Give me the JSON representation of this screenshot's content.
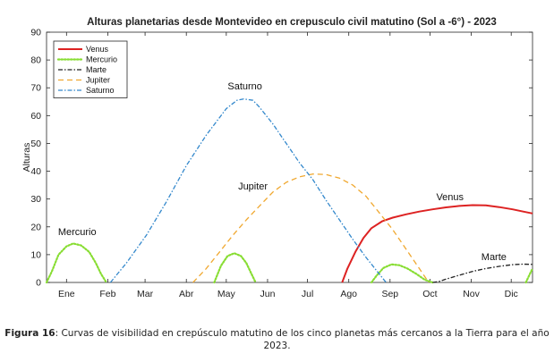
{
  "chart_data": {
    "type": "line",
    "title": "Alturas planetarias desde Montevideo en crepusculo civil matutino (Sol a -6°) - 2023",
    "xlabel": "",
    "ylabel": "Alturas",
    "xlim": [
      0,
      365
    ],
    "ylim": [
      0,
      90
    ],
    "yticks": [
      0,
      10,
      20,
      30,
      40,
      50,
      60,
      70,
      80,
      90
    ],
    "xtick_positions": [
      15,
      46,
      74,
      105,
      135,
      166,
      196,
      227,
      258,
      288,
      319,
      349
    ],
    "xtick_labels": [
      "Ene",
      "Feb",
      "Mar",
      "Abr",
      "May",
      "Jun",
      "Jul",
      "Ago",
      "Sep",
      "Oct",
      "Nov",
      "Dic"
    ],
    "grid": false,
    "legend_position": "top-left",
    "series": [
      {
        "name": "Venus",
        "color": "#dd2222",
        "dash": "solid",
        "segments": [
          [
            [
              222,
              0
            ],
            [
              226,
              5
            ],
            [
              232,
              11
            ],
            [
              238,
              16
            ],
            [
              244,
              19.5
            ],
            [
              252,
              22
            ],
            [
              260,
              23.3
            ],
            [
              270,
              24.5
            ],
            [
              280,
              25.5
            ],
            [
              290,
              26.3
            ],
            [
              300,
              27
            ],
            [
              310,
              27.5
            ],
            [
              320,
              27.8
            ],
            [
              330,
              27.7
            ],
            [
              340,
              27.1
            ],
            [
              350,
              26.3
            ],
            [
              358,
              25.5
            ],
            [
              365,
              24.8
            ]
          ]
        ]
      },
      {
        "name": "Mercurio",
        "color": "#88dd33",
        "dash": "dot",
        "segments": [
          [
            [
              0,
              0
            ],
            [
              4,
              4
            ],
            [
              9,
              10
            ],
            [
              15,
              13
            ],
            [
              20,
              14
            ],
            [
              26,
              13.3
            ],
            [
              32,
              11
            ],
            [
              37,
              7
            ],
            [
              41,
              3
            ],
            [
              45,
              0
            ]
          ],
          [
            [
              126,
              0
            ],
            [
              131,
              6
            ],
            [
              136,
              9.5
            ],
            [
              141,
              10.5
            ],
            [
              146,
              9.5
            ],
            [
              150,
              7
            ],
            [
              154,
              3
            ],
            [
              157,
              0
            ]
          ],
          [
            [
              244,
              0
            ],
            [
              248,
              2.5
            ],
            [
              253,
              5.2
            ],
            [
              259,
              6.5
            ],
            [
              265,
              6.2
            ],
            [
              271,
              5
            ],
            [
              278,
              3
            ],
            [
              284,
              1
            ],
            [
              290,
              0
            ]
          ],
          [
            [
              360,
              0
            ],
            [
              362,
              2
            ],
            [
              365,
              5
            ]
          ]
        ]
      },
      {
        "name": "Marte",
        "color": "#222222",
        "dash": "dashdot",
        "segments": [
          [
            [
              290,
              0
            ],
            [
              295,
              0.4
            ],
            [
              300,
              1.2
            ],
            [
              310,
              2.6
            ],
            [
              320,
              4
            ],
            [
              330,
              5
            ],
            [
              340,
              5.8
            ],
            [
              350,
              6.4
            ],
            [
              358,
              6.6
            ],
            [
              365,
              6.5
            ]
          ]
        ]
      },
      {
        "name": "Jupiter",
        "color": "#f0a830",
        "dash": "dash",
        "segments": [
          [
            [
              110,
              0
            ],
            [
              120,
              5
            ],
            [
              130,
              11
            ],
            [
              140,
              17
            ],
            [
              150,
              22.5
            ],
            [
              160,
              27.5
            ],
            [
              170,
              32.5
            ],
            [
              180,
              36
            ],
            [
              190,
              38
            ],
            [
              200,
              39
            ],
            [
              210,
              38.8
            ],
            [
              220,
              37.5
            ],
            [
              230,
              35
            ],
            [
              240,
              31
            ],
            [
              250,
              25
            ],
            [
              260,
              19
            ],
            [
              270,
              12
            ],
            [
              280,
              5
            ],
            [
              287,
              0
            ]
          ]
        ]
      },
      {
        "name": "Saturno",
        "color": "#3388cc",
        "dash": "dashdot",
        "segments": [
          [
            [
              48,
              0
            ],
            [
              60,
              7
            ],
            [
              75,
              17
            ],
            [
              90,
              29
            ],
            [
              105,
              42
            ],
            [
              120,
              53
            ],
            [
              135,
              62.5
            ],
            [
              143,
              65.5
            ],
            [
              148,
              66
            ],
            [
              155,
              65.5
            ],
            [
              160,
              63
            ],
            [
              170,
              57
            ],
            [
              180,
              50
            ],
            [
              190,
              43
            ],
            [
              200,
              37
            ],
            [
              210,
              29.5
            ],
            [
              220,
              22.5
            ],
            [
              230,
              15.5
            ],
            [
              240,
              9
            ],
            [
              250,
              3
            ],
            [
              255,
              0
            ]
          ]
        ]
      }
    ],
    "annotations": [
      {
        "text": "Mercurio",
        "x": 23,
        "y": 17
      },
      {
        "text": "Saturno",
        "x": 149,
        "y": 69.5
      },
      {
        "text": "Jupiter",
        "x": 155,
        "y": 33.5
      },
      {
        "text": "Venus",
        "x": 303,
        "y": 29.5
      },
      {
        "text": "Marte",
        "x": 336,
        "y": 8
      }
    ]
  },
  "caption": {
    "label": "Figura 16",
    "text": ": Curvas de visibilidad en crepúsculo matutino de los cinco planetas más cercanos a la Tierra para el año 2023."
  }
}
